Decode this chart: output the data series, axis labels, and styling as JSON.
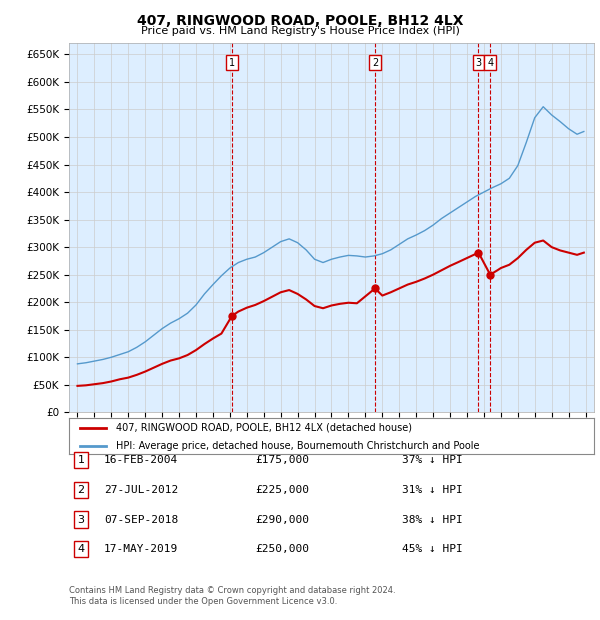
{
  "title": "407, RINGWOOD ROAD, POOLE, BH12 4LX",
  "subtitle": "Price paid vs. HM Land Registry's House Price Index (HPI)",
  "ylim": [
    0,
    670000
  ],
  "yticks": [
    0,
    50000,
    100000,
    150000,
    200000,
    250000,
    300000,
    350000,
    400000,
    450000,
    500000,
    550000,
    600000,
    650000
  ],
  "xlim_start": 1994.5,
  "xlim_end": 2025.5,
  "transactions": [
    {
      "label": "1",
      "date_str": "16-FEB-2004",
      "year": 2004.12,
      "price": 175000,
      "pct": "37% ↓ HPI"
    },
    {
      "label": "2",
      "date_str": "27-JUL-2012",
      "year": 2012.57,
      "price": 225000,
      "pct": "31% ↓ HPI"
    },
    {
      "label": "3",
      "date_str": "07-SEP-2018",
      "year": 2018.68,
      "price": 290000,
      "pct": "38% ↓ HPI"
    },
    {
      "label": "4",
      "date_str": "17-MAY-2019",
      "year": 2019.37,
      "price": 250000,
      "pct": "45% ↓ HPI"
    }
  ],
  "red_line_color": "#cc0000",
  "blue_line_color": "#5599cc",
  "dashed_line_color": "#cc0000",
  "grid_color": "#cccccc",
  "background_color": "#ffffff",
  "plot_bg_color": "#ddeeff",
  "legend_red": "407, RINGWOOD ROAD, POOLE, BH12 4LX (detached house)",
  "legend_blue": "HPI: Average price, detached house, Bournemouth Christchurch and Poole",
  "footer1": "Contains HM Land Registry data © Crown copyright and database right 2024.",
  "footer2": "This data is licensed under the Open Government Licence v3.0."
}
